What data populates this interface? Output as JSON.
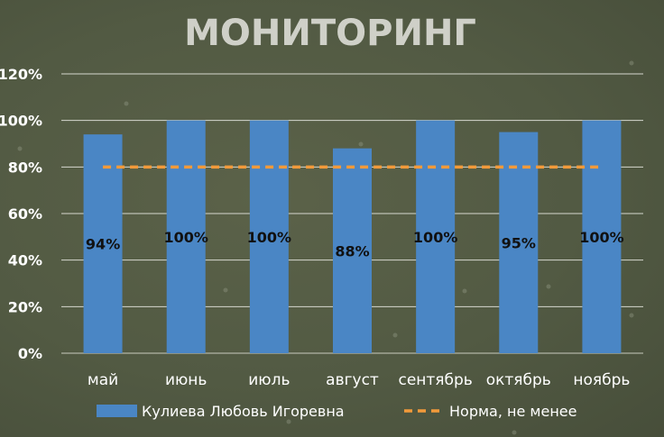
{
  "chart_data": {
    "type": "bar",
    "title": "МОНИТОРИНГ",
    "categories": [
      "май",
      "июнь",
      "июль",
      "август",
      "сентябрь",
      "октябрь",
      "ноябрь"
    ],
    "series": [
      {
        "name": "Кулиева Любовь Игоревна",
        "type": "bar",
        "values": [
          94,
          100,
          100,
          88,
          100,
          95,
          100
        ],
        "color": "#4a86c5"
      },
      {
        "name": "Норма, не менее",
        "type": "line",
        "style": "dashed",
        "values": [
          80,
          80,
          80,
          80,
          80,
          80,
          80
        ],
        "color": "#f29a3a"
      }
    ],
    "data_labels": [
      "94%",
      "100%",
      "100%",
      "88%",
      "100%",
      "95%",
      "100%"
    ],
    "yticks": [
      "0%",
      "20%",
      "40%",
      "60%",
      "80%",
      "100%",
      "120%"
    ],
    "ylim": [
      0,
      120
    ],
    "grid": true,
    "legend_position": "bottom"
  }
}
